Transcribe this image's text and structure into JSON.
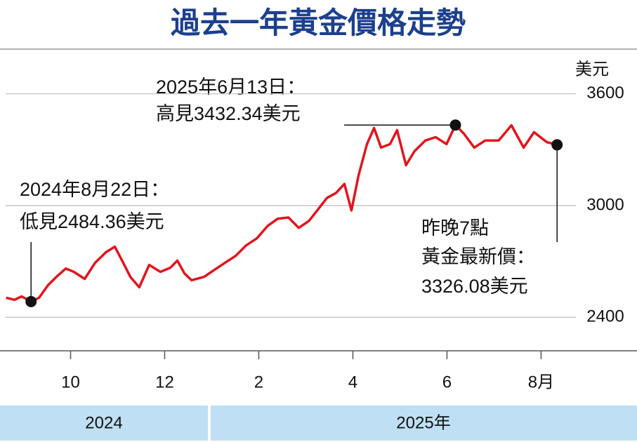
{
  "chart_data": {
    "type": "line",
    "title": "過去一年黃金價格走勢",
    "y_label": "美元",
    "color": "#e3141d",
    "x": [
      8.63,
      8.81,
      8.96,
      9.16,
      9.33,
      9.52,
      9.7,
      9.9,
      10.07,
      10.3,
      10.52,
      10.75,
      10.94,
      11.12,
      11.27,
      11.46,
      11.67,
      11.91,
      12.12,
      12.27,
      12.42,
      12.57,
      12.84,
      13.06,
      13.28,
      13.51,
      13.73,
      13.96,
      14.19,
      14.4,
      14.63,
      14.85,
      15.07,
      15.3,
      15.45,
      15.64,
      15.82,
      15.97,
      16.12,
      16.3,
      16.45,
      16.6,
      16.79,
      16.94,
      17.13,
      17.31,
      17.54,
      17.76,
      17.99,
      18.18,
      18.36,
      18.58,
      18.81,
      19.1,
      19.37,
      19.63,
      19.85,
      20.12,
      20.34
    ],
    "values": [
      2505,
      2494,
      2512,
      2484.36,
      2505,
      2572,
      2617,
      2662,
      2644,
      2606,
      2692,
      2749,
      2779,
      2692,
      2617,
      2561,
      2681,
      2644,
      2666,
      2704,
      2636,
      2599,
      2617,
      2655,
      2692,
      2730,
      2786,
      2824,
      2891,
      2929,
      2936,
      2880,
      2918,
      2992,
      3041,
      3067,
      3116,
      2974,
      3161,
      3330,
      3416,
      3311,
      3330,
      3405,
      3217,
      3292,
      3349,
      3367,
      3330,
      3432.34,
      3386,
      3311,
      3349,
      3349,
      3431,
      3311,
      3394,
      3341,
      3326.08
    ],
    "xlim": [
      8.5,
      20.8
    ],
    "xticks": [
      {
        "value": 10,
        "label": "10"
      },
      {
        "value": 12,
        "label": "12"
      },
      {
        "value": 14,
        "label": "2"
      },
      {
        "value": 16,
        "label": "4"
      },
      {
        "value": 18,
        "label": "6"
      },
      {
        "value": 20,
        "label": "8月"
      }
    ],
    "ylim": [
      2220,
      3840
    ],
    "yticks": [
      2400,
      3000,
      3600
    ],
    "grid": true,
    "annotations": [
      {
        "lines": [
          "2025年6月13日：",
          "高見3432.34美元"
        ]
      },
      {
        "lines": [
          "2024年8月22日：",
          "低見2484.36美元"
        ]
      },
      {
        "lines": [
          "昨晚7點",
          "黃金最新價：",
          "3326.08美元"
        ]
      }
    ],
    "year_bands": [
      "2024",
      "2025年"
    ]
  }
}
